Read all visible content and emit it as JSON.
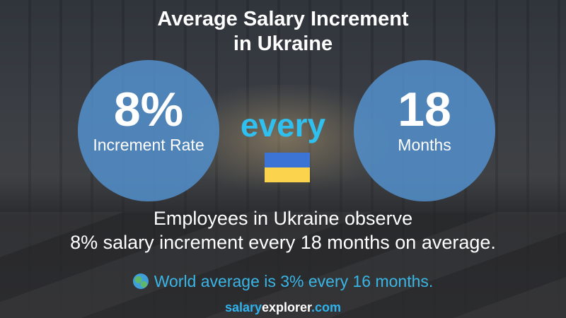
{
  "title": {
    "line1": "Average Salary Increment",
    "line2": "in Ukraine"
  },
  "left_circle": {
    "value": "8%",
    "label": "Increment Rate"
  },
  "connector": "every",
  "right_circle": {
    "value": "18",
    "label": "Months"
  },
  "flag": {
    "icon": "ukraine-flag-icon",
    "colors": [
      "#3b74d4",
      "#fbd34c"
    ]
  },
  "description": {
    "line1": "Employees in Ukraine observe",
    "line2": "8% salary increment every 18 months on average."
  },
  "world": {
    "icon": "globe-icon",
    "text": "World average is 3% every 16 months."
  },
  "brand": {
    "part1": "salary",
    "part2": "explorer",
    "part3": ".com"
  },
  "colors": {
    "circle": "#5491cd",
    "accent": "#2fc0f0"
  }
}
